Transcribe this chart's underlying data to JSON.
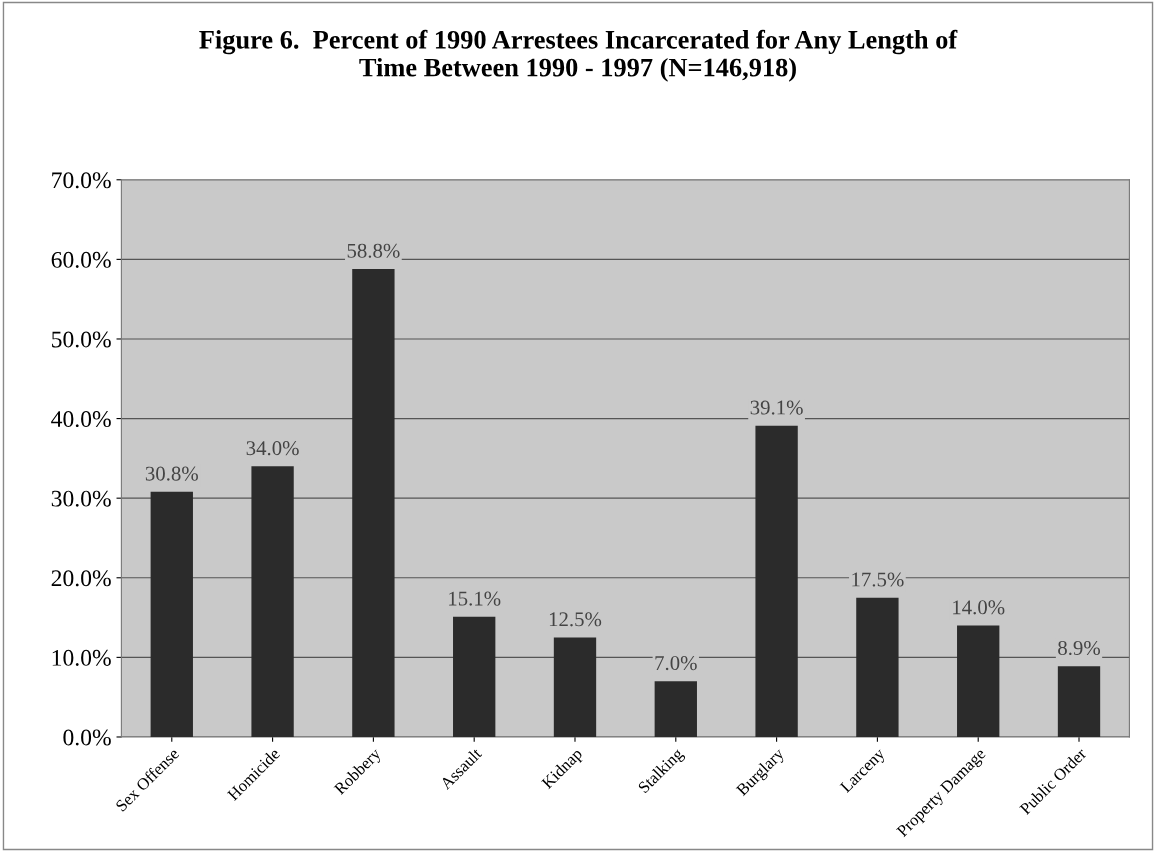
{
  "chart_data": {
    "type": "bar",
    "title": "Figure 6.  Percent of 1990 Arrestees Incarcerated for Any Length of\nTime Between 1990 - 1997 (N=146,918)",
    "categories": [
      "Sex Offense",
      "Homicide",
      "Robbery",
      "Assault",
      "Kidnap",
      "Stalking",
      "Burglary",
      "Larceny",
      "Property Damage",
      "Public Order"
    ],
    "values": [
      30.8,
      34.0,
      58.8,
      15.1,
      12.5,
      7.0,
      39.1,
      17.5,
      14.0,
      8.9
    ],
    "value_labels": [
      "30.8%",
      "34.0%",
      "58.8%",
      "15.1%",
      "12.5%",
      "7.0%",
      "39.1%",
      "17.5%",
      "14.0%",
      "8.9%"
    ],
    "color": "#2b2b2b",
    "ylim": [
      0,
      70
    ],
    "yticks": [
      {
        "value": 0,
        "label": "0.0%"
      },
      {
        "value": 10,
        "label": "10.0%"
      },
      {
        "value": 20,
        "label": "20.0%"
      },
      {
        "value": 30,
        "label": "30.0%"
      },
      {
        "value": 40,
        "label": "40.0%"
      },
      {
        "value": 50,
        "label": "50.0%"
      },
      {
        "value": 60,
        "label": "60.0%"
      },
      {
        "value": 70,
        "label": "70.0%"
      }
    ],
    "grid": "y"
  }
}
